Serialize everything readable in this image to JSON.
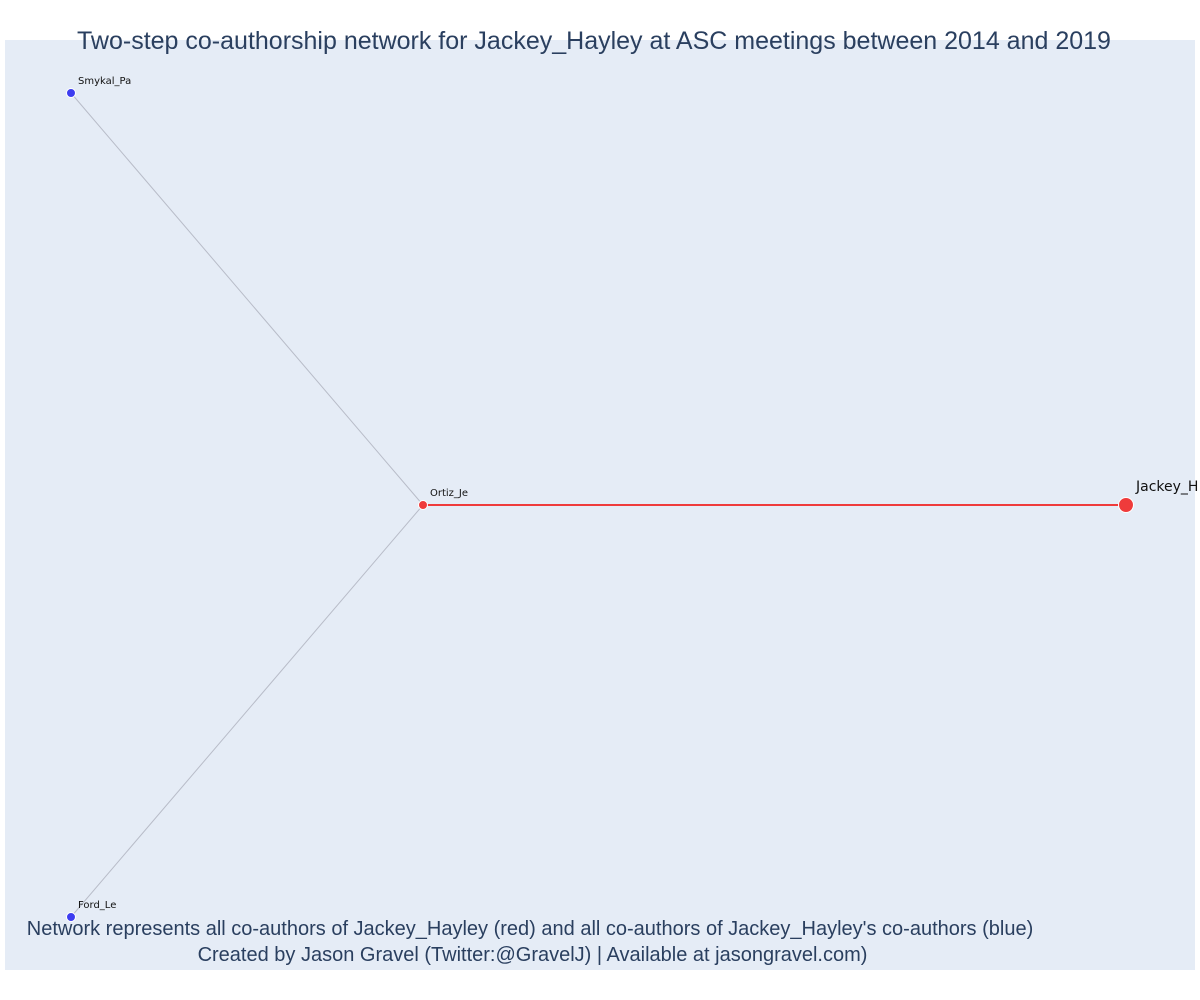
{
  "title": "Two-step co-authorship network for Jackey_Hayley at ASC meetings between 2014 and 2019",
  "footer": {
    "line1": "Network represents all co-authors of Jackey_Hayley (red) and all co-authors of Jackey_Hayley's co-authors (blue)",
    "line2": "Created by Jason Gravel (Twitter:@GravelJ) | Available at jasongravel.com)"
  },
  "colors": {
    "plot_background": "#e5ecf6",
    "first_degree": "#ef3b3b",
    "second_degree": "#3d3df0",
    "first_degree_edge": "#ef3b3b",
    "second_degree_edge": "#b8bcc8",
    "title_text": "#2a3f5f"
  },
  "network": {
    "nodes": [
      {
        "id": "Smykal_Pa",
        "label": "Smykal_Pa",
        "group": "second-degree"
      },
      {
        "id": "Ortiz_Je",
        "label": "Ortiz_Je",
        "group": "first-degree"
      },
      {
        "id": "Jackey_Hayley",
        "label": "Jackey_H",
        "group": "focal"
      },
      {
        "id": "Ford_Le",
        "label": "Ford_Le",
        "group": "second-degree"
      }
    ],
    "edges": [
      {
        "source": "Smykal_Pa",
        "target": "Ortiz_Je",
        "type": "second-degree"
      },
      {
        "source": "Ford_Le",
        "target": "Ortiz_Je",
        "type": "second-degree"
      },
      {
        "source": "Ortiz_Je",
        "target": "Jackey_Hayley",
        "type": "first-degree"
      }
    ]
  }
}
